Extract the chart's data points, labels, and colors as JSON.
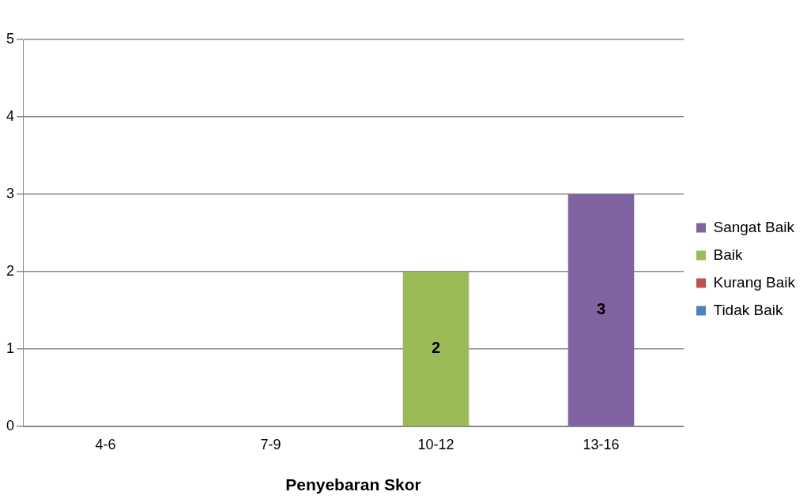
{
  "chart_data": {
    "type": "bar",
    "xlabel": "Penyebaran Skor",
    "categories": [
      "4-6",
      "7-9",
      "10-12",
      "13-16"
    ],
    "stacked": true,
    "series": [
      {
        "name": "Tidak Baik",
        "color": "#4f81bd",
        "values": [
          0,
          null,
          null,
          null
        ],
        "value_labels": [
          null,
          null,
          null,
          null
        ]
      },
      {
        "name": "Kurang Baik",
        "color": "#c0504d",
        "values": [
          null,
          0,
          null,
          null
        ],
        "value_labels": [
          null,
          null,
          null,
          null
        ]
      },
      {
        "name": "Baik",
        "color": "#9bbb59",
        "values": [
          null,
          null,
          2,
          null
        ],
        "value_labels": [
          null,
          null,
          "2",
          null
        ]
      },
      {
        "name": "Sangat Baik",
        "color": "#8064a2",
        "values": [
          null,
          null,
          null,
          3
        ],
        "value_labels": [
          null,
          null,
          null,
          "3"
        ]
      }
    ],
    "ylim": [
      0,
      5
    ],
    "yticks": [
      0,
      1,
      2,
      3,
      4,
      5
    ],
    "grid": "y",
    "legend": "right"
  }
}
